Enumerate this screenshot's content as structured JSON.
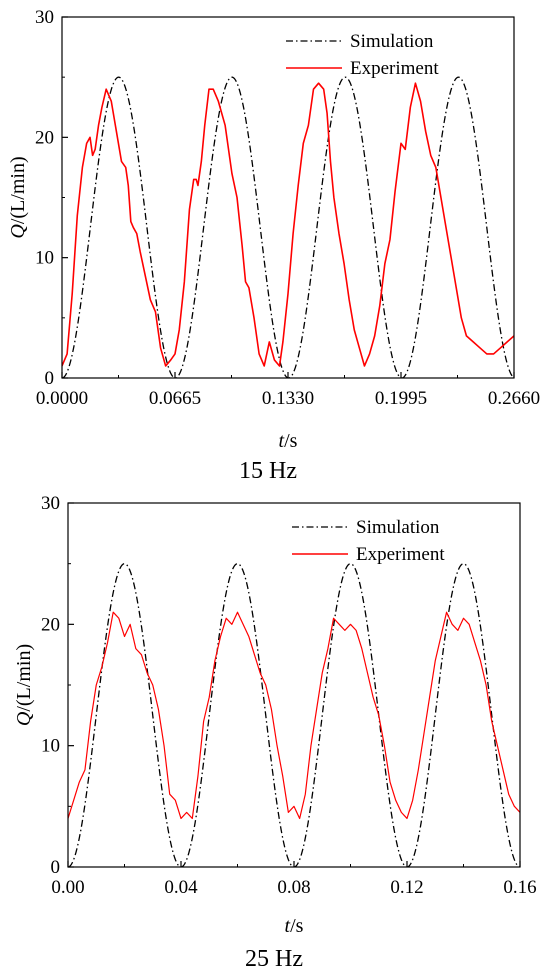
{
  "chart_data": [
    {
      "type": "line",
      "caption": "15 Hz",
      "xlabel_var": "t",
      "xlabel_unit": "/s",
      "ylabel_var": "Q",
      "ylabel_unit": "/(L/min)",
      "xlim": [
        0,
        0.266
      ],
      "ylim": [
        0,
        30
      ],
      "xticks": [
        "0.0000",
        "0.0665",
        "0.1330",
        "0.1995",
        "0.2660"
      ],
      "yticks": [
        "0",
        "10",
        "20",
        "30"
      ],
      "legend_position": "top-right",
      "series": [
        {
          "name": "Simulation",
          "color": "#000000",
          "style": "dash-dot",
          "function": "12.5*(1-cos(2*pi*15*t))",
          "amplitude": 12.5,
          "offset": 12.5,
          "frequency": 15
        },
        {
          "name": "Experiment",
          "color": "#ff0000",
          "style": "solid",
          "x": [
            0.0,
            0.003,
            0.006,
            0.009,
            0.012,
            0.0145,
            0.0165,
            0.018,
            0.0195,
            0.0215,
            0.0235,
            0.026,
            0.029,
            0.032,
            0.035,
            0.0375,
            0.039,
            0.0405,
            0.042,
            0.044,
            0.046,
            0.049,
            0.052,
            0.055,
            0.058,
            0.061,
            0.064,
            0.0665,
            0.069,
            0.072,
            0.075,
            0.0775,
            0.079,
            0.08,
            0.082,
            0.084,
            0.0865,
            0.089,
            0.092,
            0.096,
            0.1,
            0.103,
            0.106,
            0.108,
            0.11,
            0.113,
            0.116,
            0.119,
            0.122,
            0.125,
            0.128,
            0.13,
            0.133,
            0.136,
            0.139,
            0.142,
            0.145,
            0.148,
            0.151,
            0.154,
            0.156,
            0.158,
            0.16,
            0.163,
            0.166,
            0.169,
            0.172,
            0.175,
            0.178,
            0.181,
            0.184,
            0.187,
            0.19,
            0.193,
            0.196,
            0.1995,
            0.202,
            0.205,
            0.208,
            0.211,
            0.214,
            0.217,
            0.22,
            0.223,
            0.226,
            0.229,
            0.232,
            0.235,
            0.238,
            0.242,
            0.246,
            0.25,
            0.254,
            0.258,
            0.262,
            0.266
          ],
          "y": [
            1.0,
            2.0,
            7.0,
            13.5,
            17.5,
            19.5,
            20.0,
            18.5,
            19.0,
            21.0,
            22.5,
            24.0,
            23.0,
            20.5,
            18.0,
            17.5,
            16.0,
            13.0,
            12.5,
            12.0,
            10.5,
            8.5,
            6.5,
            5.5,
            2.5,
            1.0,
            1.5,
            2.0,
            4.0,
            8.0,
            14.0,
            16.5,
            16.5,
            16.0,
            18.0,
            21.0,
            24.0,
            24.0,
            23.0,
            21.0,
            17.0,
            15.0,
            11.0,
            8.0,
            7.5,
            5.0,
            2.0,
            1.0,
            3.0,
            1.5,
            1.0,
            3.0,
            7.0,
            12.0,
            16.0,
            19.5,
            21.0,
            24.0,
            24.5,
            24.0,
            22.0,
            18.0,
            15.0,
            12.0,
            9.5,
            6.5,
            4.0,
            2.5,
            1.0,
            2.0,
            3.5,
            6.0,
            9.5,
            11.5,
            15.5,
            19.5,
            19.0,
            22.5,
            24.5,
            23.0,
            20.5,
            18.5,
            17.5,
            15.0,
            12.5,
            10.0,
            7.5,
            5.0,
            3.5,
            3.0,
            2.5,
            2.0,
            2.0,
            2.5,
            3.0,
            3.5
          ]
        }
      ]
    },
    {
      "type": "line",
      "caption": "25 Hz",
      "xlabel_var": "t",
      "xlabel_unit": "/s",
      "ylabel_var": "Q",
      "ylabel_unit": "/(L/min)",
      "xlim": [
        0,
        0.16
      ],
      "ylim": [
        0,
        30
      ],
      "xticks": [
        "0.00",
        "0.04",
        "0.08",
        "0.12",
        "0.16"
      ],
      "yticks": [
        "0",
        "10",
        "20",
        "30"
      ],
      "legend_position": "top-right",
      "series": [
        {
          "name": "Simulation",
          "color": "#000000",
          "style": "dash-dot",
          "function": "12.5*(1-cos(2*pi*25*t))",
          "amplitude": 12.5,
          "offset": 12.5,
          "frequency": 25
        },
        {
          "name": "Experiment",
          "color": "#ff0000",
          "style": "solid",
          "x": [
            0.0,
            0.002,
            0.004,
            0.006,
            0.008,
            0.01,
            0.012,
            0.014,
            0.016,
            0.018,
            0.02,
            0.022,
            0.024,
            0.026,
            0.028,
            0.03,
            0.032,
            0.034,
            0.036,
            0.038,
            0.04,
            0.042,
            0.044,
            0.046,
            0.048,
            0.05,
            0.052,
            0.054,
            0.056,
            0.058,
            0.06,
            0.062,
            0.064,
            0.066,
            0.068,
            0.07,
            0.072,
            0.074,
            0.076,
            0.078,
            0.08,
            0.082,
            0.084,
            0.086,
            0.088,
            0.09,
            0.092,
            0.094,
            0.096,
            0.098,
            0.1,
            0.102,
            0.104,
            0.106,
            0.108,
            0.11,
            0.112,
            0.114,
            0.116,
            0.118,
            0.12,
            0.122,
            0.124,
            0.126,
            0.128,
            0.13,
            0.132,
            0.134,
            0.136,
            0.138,
            0.14,
            0.142,
            0.144,
            0.146,
            0.148,
            0.15,
            0.152,
            0.154,
            0.156,
            0.158,
            0.16
          ],
          "y": [
            4.0,
            5.5,
            7.0,
            8.0,
            12.0,
            15.0,
            16.5,
            18.5,
            21.0,
            20.5,
            19.0,
            20.0,
            18.0,
            17.5,
            16.0,
            15.0,
            13.0,
            10.0,
            6.0,
            5.5,
            4.0,
            4.5,
            4.0,
            7.5,
            12.0,
            14.0,
            17.0,
            19.0,
            20.5,
            20.0,
            21.0,
            20.0,
            19.0,
            17.5,
            16.0,
            15.0,
            13.0,
            10.0,
            7.5,
            4.5,
            5.0,
            4.0,
            6.0,
            10.0,
            13.0,
            16.0,
            18.0,
            20.5,
            20.0,
            19.5,
            20.0,
            19.5,
            18.0,
            16.0,
            14.0,
            12.5,
            10.0,
            7.0,
            5.5,
            4.5,
            4.0,
            5.5,
            8.0,
            11.0,
            14.0,
            17.0,
            19.0,
            21.0,
            20.0,
            19.5,
            20.5,
            20.0,
            18.5,
            17.0,
            15.0,
            12.0,
            10.0,
            8.0,
            6.0,
            5.0,
            4.5
          ]
        }
      ]
    }
  ]
}
